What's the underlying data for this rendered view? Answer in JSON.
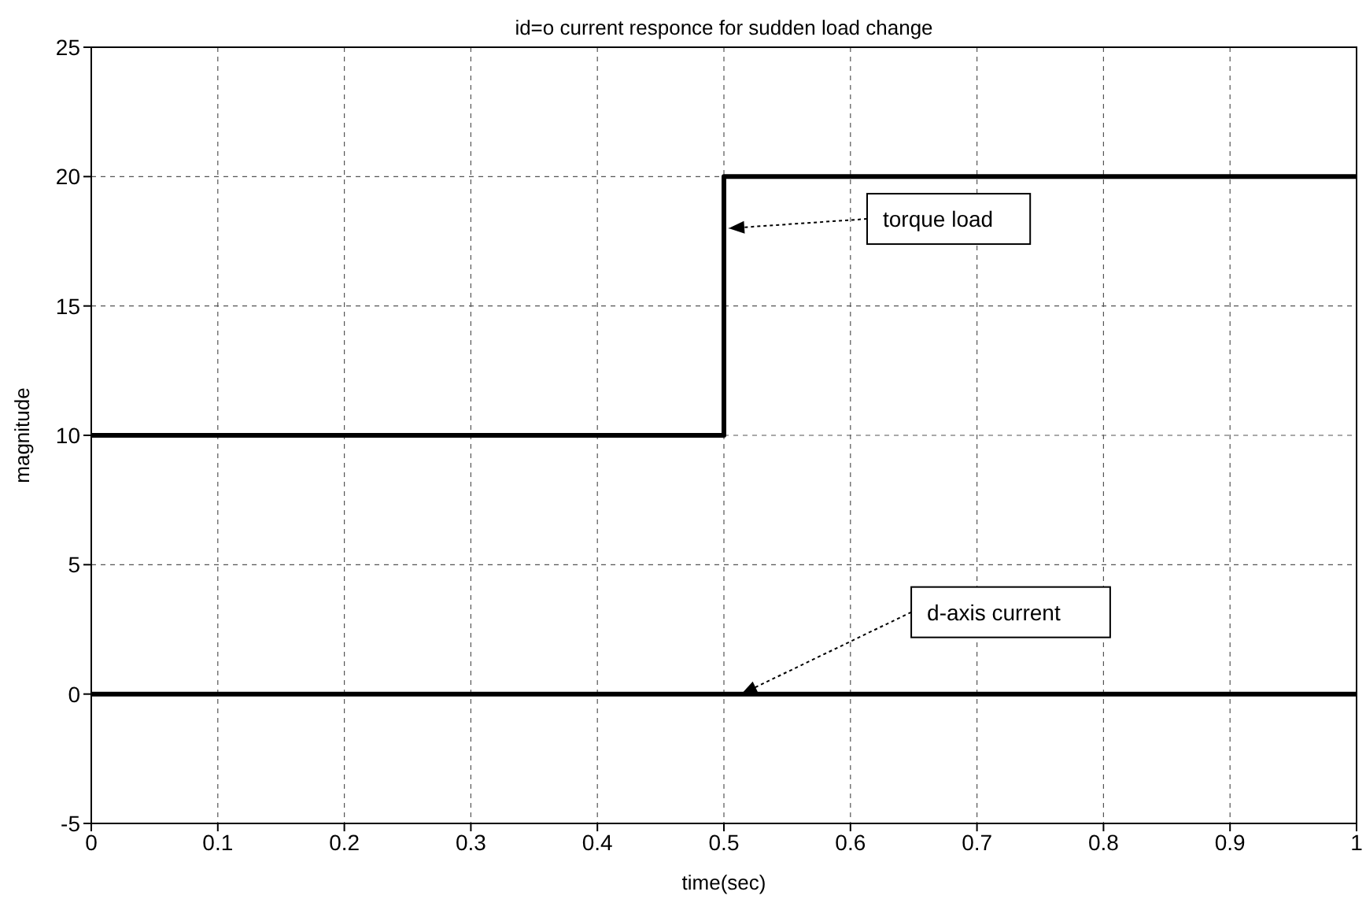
{
  "chart_data": {
    "type": "line",
    "title": "id=o current responce for sudden load change",
    "xlabel": "time(sec)",
    "ylabel": "magnitude",
    "series": [
      {
        "x": [
          0,
          0.5,
          0.5,
          1
        ],
        "values": [
          10,
          10,
          20,
          20
        ],
        "color": "#000000"
      },
      {
        "x": [
          0,
          1
        ],
        "values": [
          0,
          0
        ],
        "color": "#000000"
      }
    ],
    "annotations": [
      {
        "text": "torque load",
        "x": 0.5,
        "y": 18
      },
      {
        "text": "d-axis current",
        "x": 0.51,
        "y": 0
      }
    ],
    "xlim": [
      0,
      1
    ],
    "xticks": [
      0,
      0.1,
      0.2,
      0.3,
      0.4,
      0.5,
      0.6,
      0.7,
      0.8,
      0.9,
      1
    ],
    "ylim": [
      -5,
      25
    ],
    "yticks": [
      -5,
      0,
      5,
      10,
      15,
      20,
      25
    ],
    "grid": true,
    "marker": "none",
    "line_style": "solid"
  }
}
